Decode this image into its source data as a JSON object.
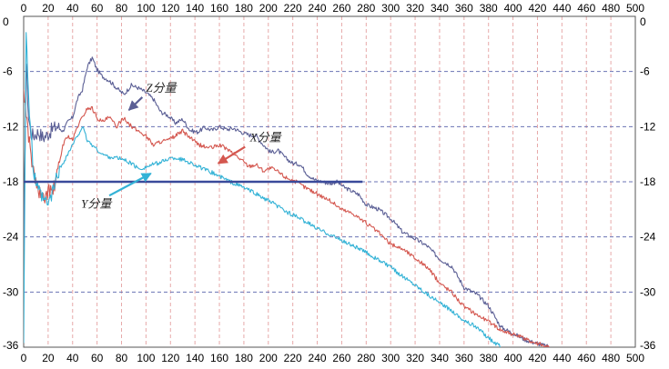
{
  "chart_data": {
    "type": "line",
    "xlim": [
      0,
      500
    ],
    "ylim": [
      -36,
      0
    ],
    "x_ticks": [
      "0",
      "20",
      "40",
      "60",
      "80",
      "100",
      "120",
      "140",
      "160",
      "180",
      "200",
      "220",
      "240",
      "260",
      "280",
      "300",
      "320",
      "340",
      "360",
      "380",
      "400",
      "420",
      "440",
      "460",
      "480",
      "500"
    ],
    "y_ticks": [
      "0",
      "-6",
      "-12",
      "-18",
      "-24",
      "-30",
      "-36"
    ],
    "y_tick_values": [
      0,
      -6,
      -12,
      -18,
      -24,
      -30,
      -36
    ],
    "grid": {
      "vertical": "dashed",
      "horizontal": "dashed"
    },
    "colors": {
      "z": "#5b5f95",
      "x": "#d4574f",
      "y": "#33b2d6",
      "threshold": "#3a4a9a",
      "grid_v": "#e7a9a9",
      "grid_h": "#6a73b4"
    },
    "series": [
      {
        "name": "Z分量",
        "x": [
          0,
          2,
          4,
          6,
          8,
          12,
          16,
          20,
          24,
          28,
          32,
          36,
          40,
          44,
          48,
          52,
          56,
          60,
          64,
          70,
          76,
          82,
          88,
          94,
          100,
          106,
          112,
          118,
          124,
          130,
          136,
          142,
          148,
          154,
          160,
          166,
          172,
          178,
          184,
          190,
          196,
          202,
          208,
          214,
          220,
          226,
          232,
          238,
          244,
          250,
          256,
          262,
          268,
          274,
          280,
          290,
          300,
          310,
          320,
          330,
          340,
          350,
          360,
          370,
          380,
          390,
          400,
          410,
          420,
          430
        ],
        "y": [
          -26,
          -5,
          -11,
          -12.8,
          -13,
          -12.6,
          -13.2,
          -12.8,
          -12.2,
          -12,
          -12.5,
          -11.5,
          -11,
          -9,
          -8,
          -5.5,
          -4.5,
          -5.8,
          -6.5,
          -7,
          -7.8,
          -8.5,
          -7.5,
          -7.8,
          -8.3,
          -9,
          -10.4,
          -10.8,
          -11.6,
          -11.2,
          -12.4,
          -12.6,
          -12.1,
          -12.4,
          -12,
          -12.3,
          -12.2,
          -12.6,
          -12.9,
          -13,
          -14,
          -14.8,
          -14.6,
          -15.4,
          -16,
          -16.1,
          -17.2,
          -17.8,
          -18,
          -18.2,
          -18,
          -18.6,
          -19,
          -19.4,
          -20.5,
          -21,
          -22,
          -23.5,
          -24.2,
          -25,
          -26.4,
          -27.2,
          -29.5,
          -30.2,
          -31.5,
          -33.8,
          -34.5,
          -35.2,
          -35.6,
          -36
        ]
      },
      {
        "name": "X分量",
        "x": [
          0,
          4,
          8,
          12,
          16,
          20,
          24,
          28,
          32,
          36,
          40,
          44,
          48,
          52,
          56,
          60,
          64,
          70,
          76,
          82,
          88,
          94,
          100,
          106,
          112,
          118,
          124,
          130,
          136,
          142,
          148,
          154,
          160,
          166,
          172,
          178,
          184,
          190,
          196,
          202,
          208,
          214,
          220,
          230,
          240,
          250,
          260,
          270,
          280,
          290,
          300,
          310,
          320,
          330,
          340,
          350,
          360,
          370,
          380,
          390,
          400,
          410,
          420,
          430
        ],
        "y": [
          -8,
          -13,
          -17,
          -19,
          -20,
          -19,
          -19,
          -17,
          -14,
          -13,
          -13.5,
          -12,
          -11,
          -10,
          -10,
          -11,
          -11.5,
          -11,
          -12,
          -11,
          -12,
          -12.5,
          -13,
          -14,
          -13.6,
          -13.5,
          -13,
          -12.5,
          -13.2,
          -13.9,
          -14.2,
          -14.3,
          -14,
          -14.4,
          -15,
          -15.6,
          -16.3,
          -16.1,
          -16.8,
          -16.5,
          -16.9,
          -17.5,
          -17.8,
          -18.6,
          -19.3,
          -20,
          -21,
          -21.5,
          -22.5,
          -23.5,
          -24.8,
          -25.3,
          -26.3,
          -27.3,
          -29,
          -30,
          -31.6,
          -32.4,
          -33.2,
          -34.1,
          -34.6,
          -35.1,
          -35.6,
          -36
        ]
      },
      {
        "name": "Y分量",
        "x": [
          0,
          2,
          4,
          6,
          8,
          12,
          16,
          20,
          24,
          28,
          32,
          36,
          40,
          44,
          48,
          52,
          56,
          60,
          64,
          70,
          76,
          82,
          88,
          94,
          100,
          106,
          112,
          118,
          124,
          130,
          136,
          142,
          148,
          154,
          160,
          166,
          172,
          178,
          184,
          190,
          196,
          202,
          208,
          214,
          220,
          230,
          240,
          250,
          260,
          270,
          280,
          290,
          300,
          310,
          320,
          330,
          340,
          350,
          360,
          370,
          380,
          390
        ],
        "y": [
          -35,
          -1,
          -9,
          -13,
          -17,
          -19,
          -20,
          -20.5,
          -19,
          -17,
          -16,
          -15,
          -14,
          -13,
          -12,
          -13.5,
          -14,
          -14.5,
          -15,
          -15.3,
          -15.4,
          -15.6,
          -16,
          -16.6,
          -16.4,
          -16.1,
          -15.9,
          -15.5,
          -15.4,
          -15.6,
          -15.9,
          -16.3,
          -16.7,
          -17,
          -17.4,
          -17.8,
          -18.2,
          -18.5,
          -18.9,
          -19.3,
          -19.8,
          -20.2,
          -20.7,
          -21.2,
          -21.6,
          -22.3,
          -23.1,
          -23.7,
          -24.4,
          -25,
          -25.7,
          -26.5,
          -27.3,
          -28.3,
          -29.2,
          -30.2,
          -31.2,
          -32,
          -33.1,
          -33.8,
          -35,
          -36
        ]
      }
    ],
    "threshold": {
      "y": -18,
      "x_start": 0,
      "x_end": 277
    },
    "annotations": [
      {
        "id": "z",
        "label": "Z分量",
        "text_x": 100,
        "text_y": -8.2,
        "arrow_from": [
          97,
          -8.8
        ],
        "arrow_to": [
          86,
          -10.2
        ]
      },
      {
        "id": "x",
        "label": "X分量",
        "text_x": 185,
        "text_y": -13.6,
        "arrow_from": [
          181,
          -14.2
        ],
        "arrow_to": [
          159,
          -16.0
        ]
      },
      {
        "id": "y",
        "label": "Y分量",
        "text_x": 47,
        "text_y": -20.8,
        "arrow_from": [
          70,
          -19.5
        ],
        "arrow_to": [
          104,
          -17.1
        ]
      }
    ]
  }
}
